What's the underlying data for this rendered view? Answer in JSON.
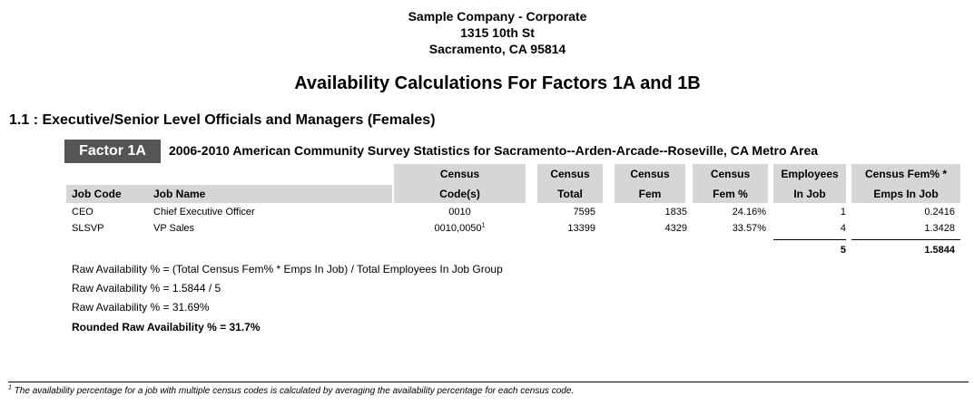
{
  "company": {
    "name": "Sample Company - Corporate",
    "address": "1315 10th St",
    "city_line": "Sacramento, CA 95814"
  },
  "report_title": "Availability Calculations For Factors 1A and 1B",
  "section_title": "1.1 : Executive/Senior Level Officials and Managers (Females)",
  "factor": {
    "badge": "Factor 1A",
    "description": "2006-2010 American Community Survey Statistics for Sacramento--Arden-Arcade--Roseville, CA Metro Area"
  },
  "table": {
    "headers": {
      "job_code": "Job Code",
      "job_name": "Job Name",
      "census_codes": [
        "Census",
        "Code(s)"
      ],
      "census_total": [
        "Census",
        "Total"
      ],
      "census_fem": [
        "Census",
        "Fem"
      ],
      "census_fem_pct": [
        "Census",
        "Fem %"
      ],
      "employees": [
        "Employees",
        "In Job"
      ],
      "fem_emps": [
        "Census Fem% *",
        "Emps In Job"
      ]
    },
    "rows": [
      {
        "job_code": "CEO",
        "job_name": "Chief Executive Officer",
        "census_codes": "0010",
        "footnote_mark": "",
        "census_total": "7595",
        "census_fem": "1835",
        "census_fem_pct": "24.16%",
        "employees": "1",
        "fem_emps": "0.2416"
      },
      {
        "job_code": "SLSVP",
        "job_name": "VP Sales",
        "census_codes": "0010,0050",
        "footnote_mark": "1",
        "census_total": "13399",
        "census_fem": "4329",
        "census_fem_pct": "33.57%",
        "employees": "4",
        "fem_emps": "1.3428"
      }
    ],
    "totals": {
      "employees": "5",
      "fem_emps": "1.5844"
    }
  },
  "calculations": [
    "Raw Availability % = (Total Census Fem% * Emps In Job) / Total Employees In Job Group",
    "Raw Availability % = 1.5844 / 5",
    "Raw Availability % = 31.69%",
    "Rounded Raw Availability % = 31.7%"
  ],
  "footnote": {
    "mark": "1",
    "text": "The availability percentage for a job with multiple census codes is calculated by averaging the availability percentage for each census code."
  }
}
